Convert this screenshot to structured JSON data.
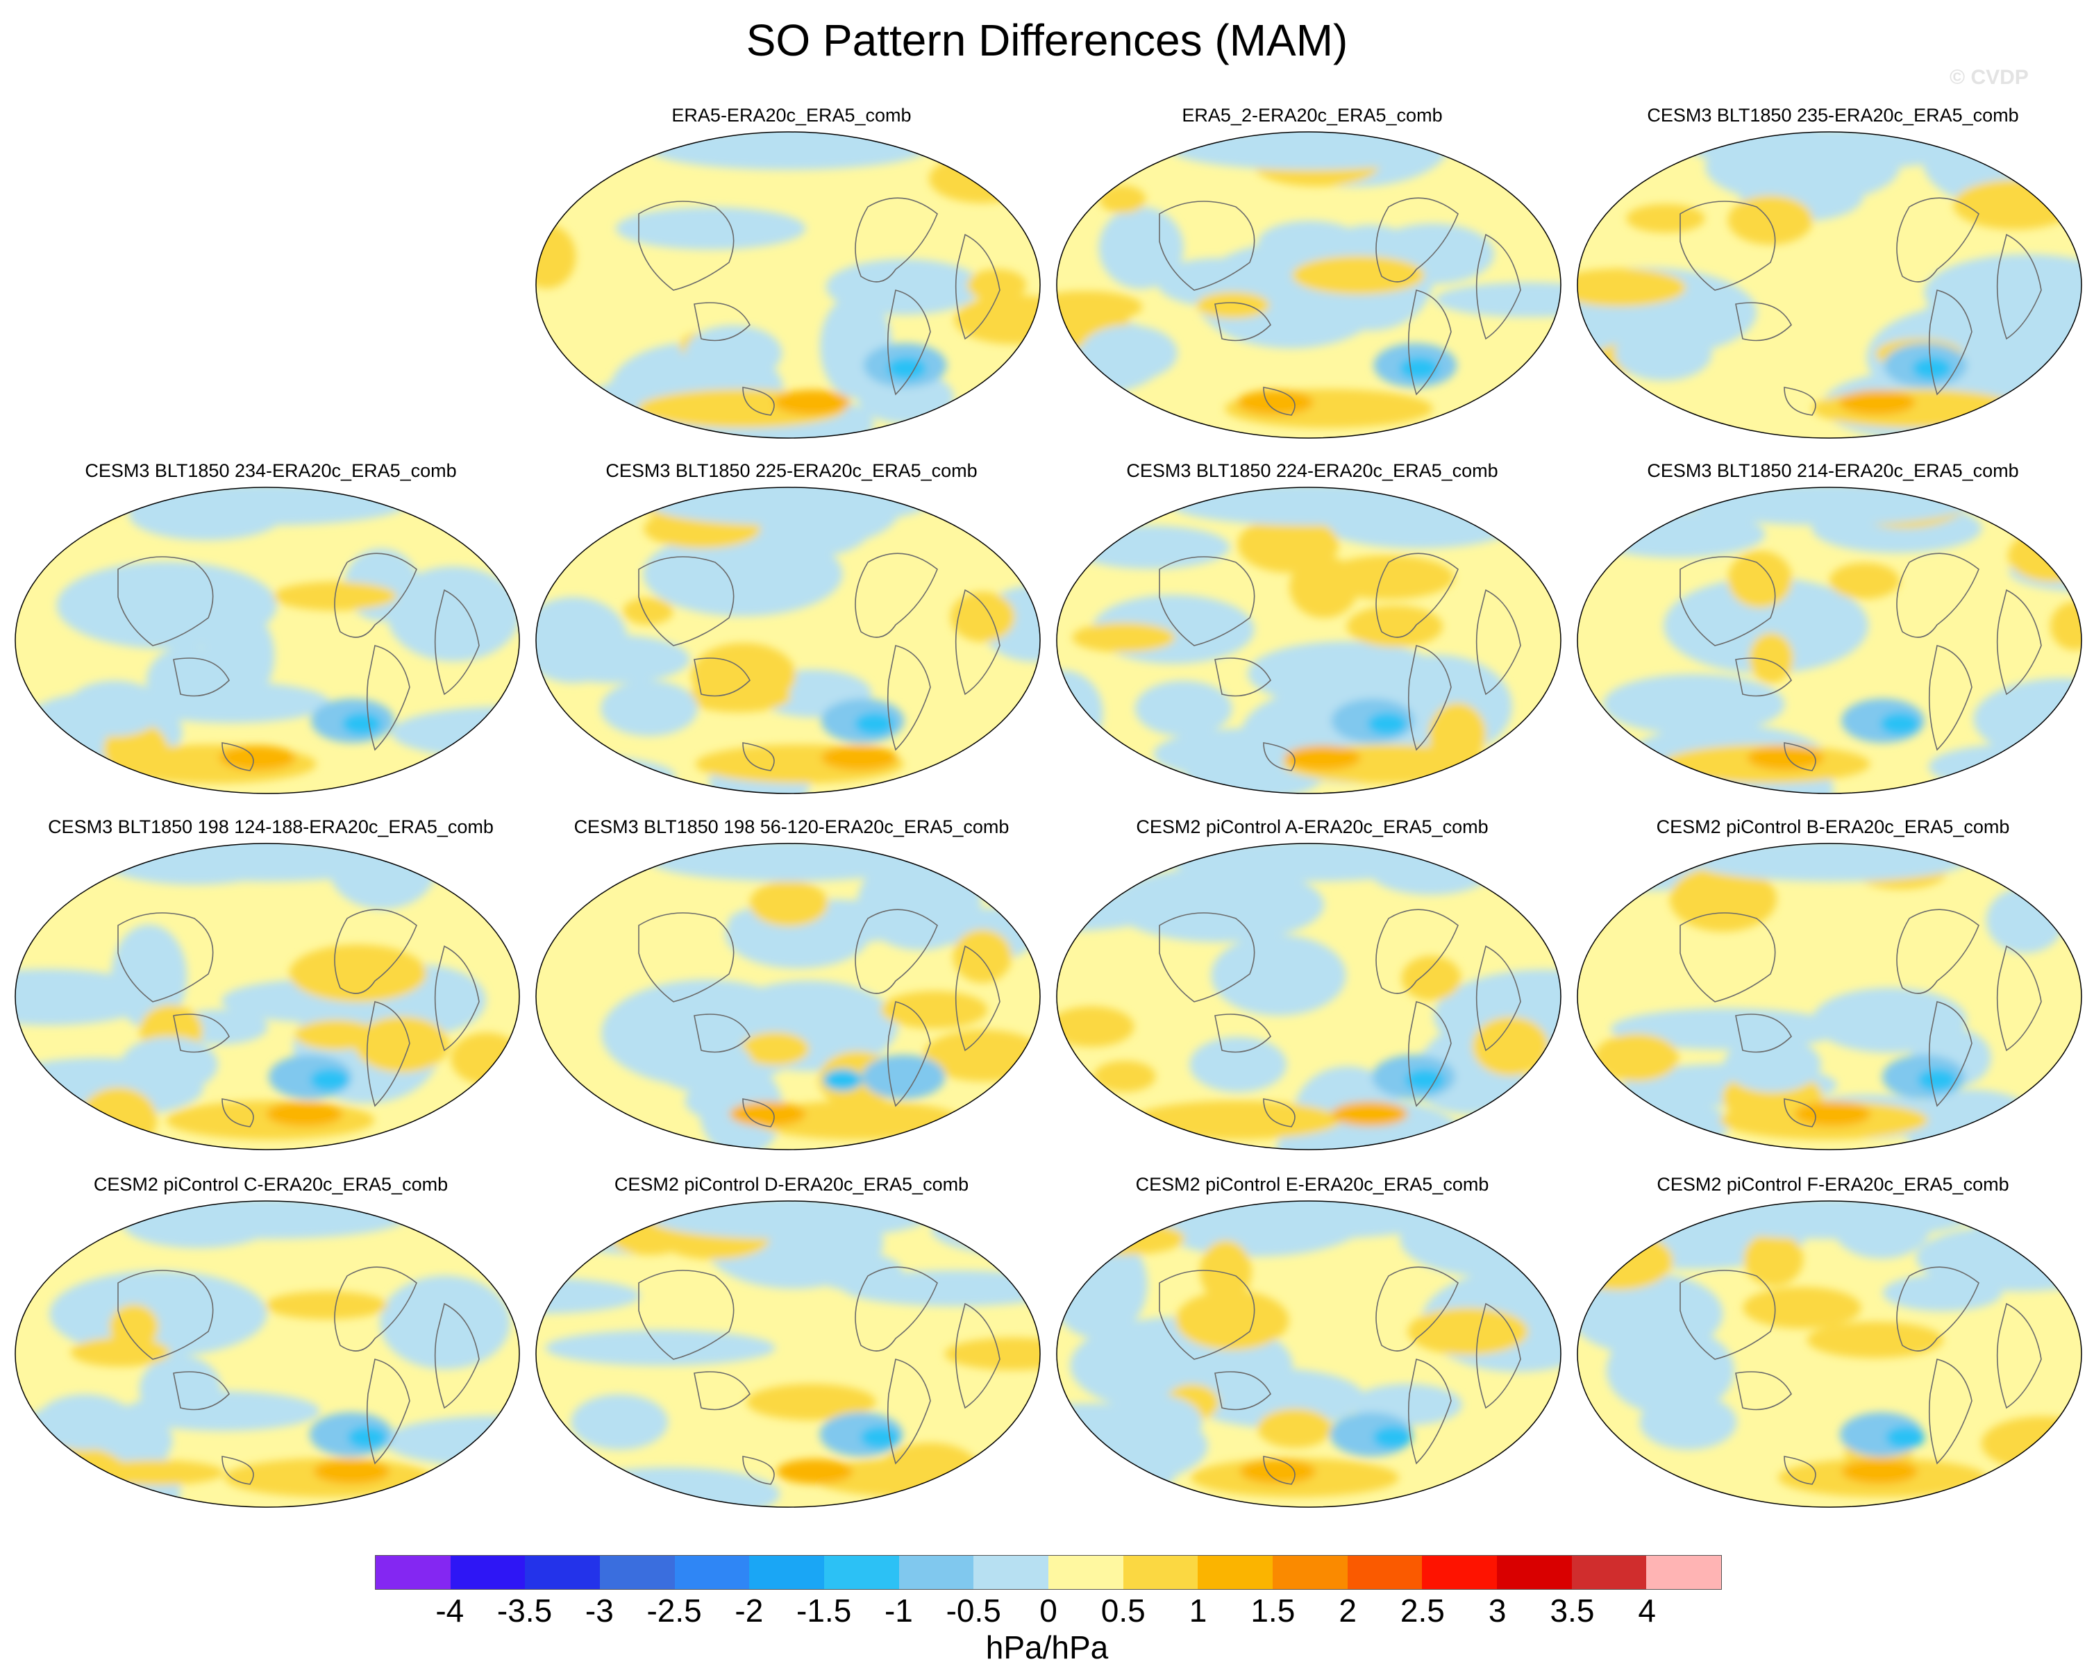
{
  "title": "SO Pattern Differences (MAM)",
  "watermark": "© CVDP",
  "panels": [
    {
      "title": "ERA5-ERA20c_ERA5_comb"
    },
    {
      "title": "ERA5_2-ERA20c_ERA5_comb"
    },
    {
      "title": "CESM3 BLT1850 235-ERA20c_ERA5_comb"
    },
    {
      "title": "CESM3 BLT1850 234-ERA20c_ERA5_comb"
    },
    {
      "title": "CESM3 BLT1850 225-ERA20c_ERA5_comb"
    },
    {
      "title": "CESM3 BLT1850 224-ERA20c_ERA5_comb"
    },
    {
      "title": "CESM3 BLT1850 214-ERA20c_ERA5_comb"
    },
    {
      "title": "CESM3 BLT1850 198 124-188-ERA20c_ERA5_comb"
    },
    {
      "title": "CESM3 BLT1850 198 56-120-ERA20c_ERA5_comb"
    },
    {
      "title": "CESM2 piControl A-ERA20c_ERA5_comb"
    },
    {
      "title": "CESM2 piControl B-ERA20c_ERA5_comb"
    },
    {
      "title": "CESM2 piControl C-ERA20c_ERA5_comb"
    },
    {
      "title": "CESM2 piControl D-ERA20c_ERA5_comb"
    },
    {
      "title": "CESM2 piControl E-ERA20c_ERA5_comb"
    },
    {
      "title": "CESM2 piControl F-ERA20c_ERA5_comb"
    }
  ],
  "colorbar": {
    "colors": [
      "#8427f2",
      "#2e16f5",
      "#2333ea",
      "#3a6ede",
      "#2f86f5",
      "#1aa6f5",
      "#2cc1f5",
      "#80c8ee",
      "#b7e0f2",
      "#fff8a0",
      "#fbd842",
      "#fbb400",
      "#fa8a00",
      "#fa5a00",
      "#fe1300",
      "#d90000",
      "#d02d2d",
      "#ffb4b4"
    ],
    "tick_labels": [
      "-4",
      "-3.5",
      "-3",
      "-2.5",
      "-2",
      "-1.5",
      "-1",
      "-0.5",
      "0",
      "0.5",
      "1",
      "1.5",
      "2",
      "2.5",
      "3",
      "3.5",
      "4"
    ],
    "units": "hPa/hPa"
  }
}
